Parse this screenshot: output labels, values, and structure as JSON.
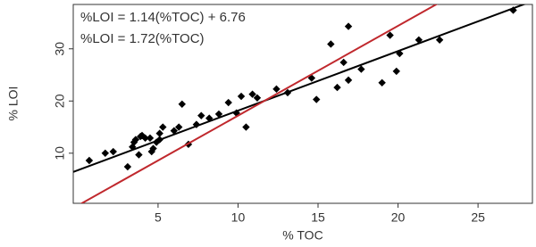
{
  "chart_data": {
    "type": "scatter",
    "x_label": "% TOC",
    "y_label": "% LOI",
    "xlim": [
      -0.3,
      28.4
    ],
    "ylim": [
      0.4,
      38.5
    ],
    "xticks": [
      5,
      10,
      15,
      20,
      25
    ],
    "yticks": [
      10,
      20,
      30
    ],
    "series": [
      {
        "color": "#000000",
        "x": [
          0.7,
          1.7,
          2.2,
          3.1,
          3.4,
          3.5,
          3.6,
          3.9,
          4,
          4.2,
          4.5,
          3.8,
          4.6,
          4.7,
          4.9,
          5.1,
          5.3,
          5.1,
          6,
          6.3,
          6.5,
          6.9,
          7.4,
          7.7,
          8.2,
          8.8,
          9.4,
          9.9,
          10.2,
          10.5,
          10.9,
          11.2,
          12.4,
          13.1,
          14.6,
          14.9,
          15.8,
          16.6,
          16.2,
          16.9,
          16.9,
          17.7,
          19,
          19.5,
          19.9,
          20.1,
          21.3,
          22.6,
          27.2
        ],
        "values": [
          8.6,
          10,
          10.3,
          7.4,
          11.2,
          12.1,
          12.6,
          13.2,
          13.4,
          12.9,
          12.9,
          9.7,
          10.3,
          10.9,
          12.1,
          12.6,
          15,
          13.8,
          14.3,
          15,
          19.4,
          11.7,
          15.5,
          17.2,
          16.7,
          17.5,
          19.7,
          17.7,
          20.9,
          15,
          21.3,
          20.6,
          22.3,
          21.6,
          24.4,
          20.3,
          30.9,
          27.4,
          22.6,
          24,
          34.3,
          26.1,
          23.5,
          32.6,
          25.7,
          29.1,
          31.7,
          31.7,
          37.4
        ]
      }
    ],
    "fit_lines": [
      {
        "label": "%LOI = 1.14(%TOC) + 6.76",
        "color": "#000000",
        "slope": 1.14,
        "intercept": 6.76
      },
      {
        "label": "%LOI = 1.72(%TOC)",
        "color": "#c0282d",
        "slope": 1.72,
        "intercept": 0
      }
    ]
  }
}
